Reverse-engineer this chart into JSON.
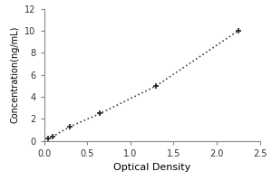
{
  "x_data": [
    0.05,
    0.1,
    0.3,
    0.65,
    1.3,
    2.25
  ],
  "y_data": [
    0.2,
    0.4,
    1.3,
    2.5,
    5.0,
    10.0
  ],
  "xlabel": "Optical Density",
  "ylabel": "Concentration(ng/mL)",
  "xlim": [
    0,
    2.5
  ],
  "ylim": [
    0,
    12
  ],
  "xticks": [
    0,
    0.5,
    1,
    1.5,
    2,
    2.5
  ],
  "yticks": [
    0,
    2,
    4,
    6,
    8,
    10,
    12
  ],
  "line_color": "#444444",
  "marker_color": "#222222",
  "line_style": ":",
  "line_width": 1.2,
  "marker": "+",
  "marker_size": 5,
  "marker_edge_width": 1.2,
  "background_color": "#ffffff",
  "xlabel_fontsize": 8,
  "ylabel_fontsize": 7,
  "tick_fontsize": 7
}
